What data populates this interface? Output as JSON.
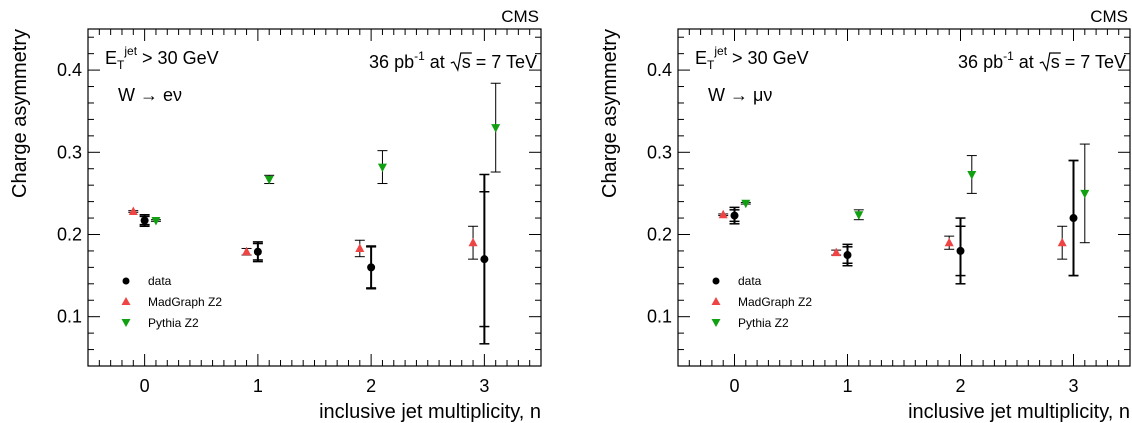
{
  "chart_data": [
    {
      "type": "scatter",
      "label": "CMS",
      "xlabel": "inclusive jet multiplicity, n",
      "ylabel": "Charge asymmetry",
      "xlim": [
        -0.5,
        3.5
      ],
      "ylim": [
        0.04,
        0.45
      ],
      "xticks": [
        0,
        1,
        2,
        3
      ],
      "yticks": [
        0.1,
        0.2,
        0.3,
        0.4
      ],
      "xticklabels": [
        "0",
        "1",
        "2",
        "3"
      ],
      "yticklabels": [
        "0.1",
        "0.2",
        "0.3",
        "0.4"
      ],
      "grid": false,
      "legend_position": "bottom-left",
      "annotations": {
        "cut_prefix": "E",
        "cut_sub": "T",
        "cut_sup": "jet",
        "cut_suffix": " > 30 GeV",
        "lumi_value": "36 pb",
        "lumi_sup": "-1",
        "lumi_at": " at ",
        "lumi_s": "s",
        "lumi_energy": " = 7 TeV",
        "channel": "W → eν"
      },
      "series": [
        {
          "name": "data",
          "marker": "circle",
          "color": "#000000",
          "x": [
            0,
            1,
            2,
            3
          ],
          "y": [
            0.217,
            0.179,
            0.16,
            0.17
          ],
          "err_inner": [
            0.005,
            0.01,
            0.025,
            0.082
          ],
          "err_outer": [
            0.007,
            0.012,
            0.026,
            0.103
          ]
        },
        {
          "name": "MadGraph Z2",
          "marker": "triangle-up",
          "color": "#ee4444",
          "x": [
            -0.1,
            0.9,
            1.9,
            2.9
          ],
          "y": [
            0.228,
            0.179,
            0.183,
            0.19
          ],
          "err": [
            0.001,
            0.004,
            0.01,
            0.02
          ]
        },
        {
          "name": "Pythia Z2",
          "marker": "triangle-down",
          "color": "#11a011",
          "x": [
            0.1,
            1.1,
            2.1,
            3.1
          ],
          "y": [
            0.217,
            0.267,
            0.282,
            0.33
          ],
          "err": [
            0.001,
            0.005,
            0.02,
            0.054
          ]
        }
      ]
    },
    {
      "type": "scatter",
      "label": "CMS",
      "xlabel": "inclusive jet multiplicity, n",
      "ylabel": "Charge asymmetry",
      "xlim": [
        -0.5,
        3.5
      ],
      "ylim": [
        0.04,
        0.45
      ],
      "xticks": [
        0,
        1,
        2,
        3
      ],
      "yticks": [
        0.1,
        0.2,
        0.3,
        0.4
      ],
      "xticklabels": [
        "0",
        "1",
        "2",
        "3"
      ],
      "yticklabels": [
        "0.1",
        "0.2",
        "0.3",
        "0.4"
      ],
      "grid": false,
      "legend_position": "bottom-left",
      "annotations": {
        "cut_prefix": "E",
        "cut_sub": "T",
        "cut_sup": "jet",
        "cut_suffix": " > 30 GeV",
        "lumi_value": "36 pb",
        "lumi_sup": "-1",
        "lumi_at": " at ",
        "lumi_s": "s",
        "lumi_energy": " = 7 TeV",
        "channel": "W → μν"
      },
      "series": [
        {
          "name": "data",
          "marker": "circle",
          "color": "#000000",
          "x": [
            0,
            1,
            2,
            3
          ],
          "y": [
            0.223,
            0.175,
            0.18,
            0.22
          ],
          "err_inner": [
            0.007,
            0.01,
            0.03,
            0.07
          ],
          "err_outer": [
            0.01,
            0.013,
            0.04,
            0.07
          ]
        },
        {
          "name": "MadGraph Z2",
          "marker": "triangle-up",
          "color": "#ee4444",
          "x": [
            -0.1,
            0.9,
            1.9,
            2.9
          ],
          "y": [
            0.224,
            0.178,
            0.19,
            0.19
          ],
          "err": [
            0.001,
            0.003,
            0.008,
            0.02
          ]
        },
        {
          "name": "Pythia Z2",
          "marker": "triangle-down",
          "color": "#11a011",
          "x": [
            0.1,
            1.1,
            2.1,
            3.1
          ],
          "y": [
            0.238,
            0.224,
            0.273,
            0.25
          ],
          "err": [
            0.001,
            0.006,
            0.023,
            0.06
          ]
        }
      ]
    }
  ]
}
